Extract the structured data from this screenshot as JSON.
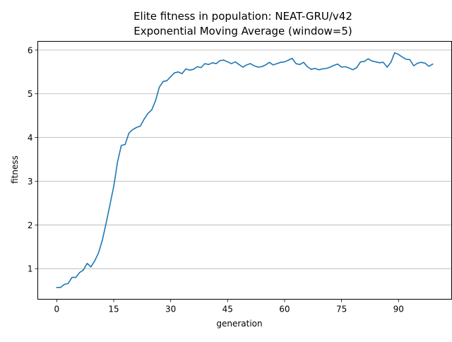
{
  "chart_data": {
    "type": "line",
    "title": "Elite fitness in population: NEAT-GRU/v42",
    "subtitle": "Exponential Moving Average (window=5)",
    "xlabel": "generation",
    "ylabel": "fitness",
    "xlim": [
      -5,
      104
    ],
    "ylim": [
      0.3,
      6.2
    ],
    "xticks": [
      0,
      15,
      30,
      45,
      60,
      75,
      90
    ],
    "yticks": [
      1,
      2,
      3,
      4,
      5,
      6
    ],
    "grid": "horizontal",
    "line_color": "#1f77b4",
    "series": [
      {
        "x": [
          0,
          1,
          2,
          3,
          4,
          5,
          6,
          7,
          8,
          9,
          10,
          11,
          12,
          13,
          14,
          15,
          16,
          17,
          18,
          19,
          20,
          21,
          22,
          23,
          24,
          25,
          26,
          27,
          28,
          29,
          30,
          31,
          32,
          33,
          34,
          35,
          36,
          37,
          38,
          39,
          40,
          41,
          42,
          43,
          44,
          45,
          46,
          47,
          48,
          49,
          50,
          51,
          52,
          53,
          54,
          55,
          56,
          57,
          58,
          59,
          60,
          61,
          62,
          63,
          64,
          65,
          66,
          67,
          68,
          69,
          70,
          71,
          72,
          73,
          74,
          75,
          76,
          77,
          78,
          79,
          80,
          81,
          82,
          83,
          84,
          85,
          86,
          87,
          88,
          89,
          90,
          91,
          92,
          93,
          94,
          95,
          96,
          97,
          98,
          99
        ],
        "values": [
          0.57,
          0.57,
          0.64,
          0.66,
          0.8,
          0.8,
          0.91,
          0.97,
          1.12,
          1.04,
          1.18,
          1.36,
          1.65,
          2.04,
          2.46,
          2.88,
          3.44,
          3.82,
          3.84,
          4.1,
          4.18,
          4.23,
          4.26,
          4.42,
          4.55,
          4.63,
          4.84,
          5.15,
          5.28,
          5.3,
          5.39,
          5.48,
          5.5,
          5.46,
          5.57,
          5.54,
          5.56,
          5.62,
          5.6,
          5.69,
          5.67,
          5.71,
          5.69,
          5.76,
          5.77,
          5.73,
          5.69,
          5.73,
          5.67,
          5.61,
          5.66,
          5.69,
          5.64,
          5.61,
          5.62,
          5.66,
          5.72,
          5.66,
          5.69,
          5.72,
          5.73,
          5.77,
          5.81,
          5.69,
          5.67,
          5.72,
          5.62,
          5.56,
          5.58,
          5.55,
          5.57,
          5.58,
          5.61,
          5.65,
          5.68,
          5.61,
          5.62,
          5.59,
          5.55,
          5.6,
          5.73,
          5.74,
          5.8,
          5.75,
          5.73,
          5.71,
          5.72,
          5.61,
          5.72,
          5.94,
          5.9,
          5.84,
          5.79,
          5.78,
          5.64,
          5.7,
          5.72,
          5.7,
          5.63,
          5.68
        ]
      }
    ]
  }
}
